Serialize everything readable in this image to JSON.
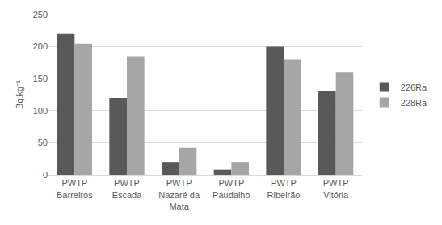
{
  "chart_data": {
    "type": "bar",
    "y_label": "Bq.kg⁻¹",
    "categories": [
      "PWTP Barreiros",
      "PWTP Escada",
      "PWTP Nazaré da Mata",
      "PWTP Paudalho",
      "PWTP Ribeirão",
      "PWTP Vitória"
    ],
    "series": [
      {
        "name": "226Ra",
        "color": "#595959",
        "values": [
          220,
          120,
          20,
          8,
          200,
          130
        ]
      },
      {
        "name": "228Ra",
        "color": "#a6a6a6",
        "values": [
          205,
          185,
          42,
          20,
          180,
          160
        ]
      }
    ],
    "ylim": [
      0,
      250
    ],
    "yticks": [
      0,
      50,
      100,
      150,
      200,
      250
    ],
    "grid": true,
    "legend": "right"
  }
}
